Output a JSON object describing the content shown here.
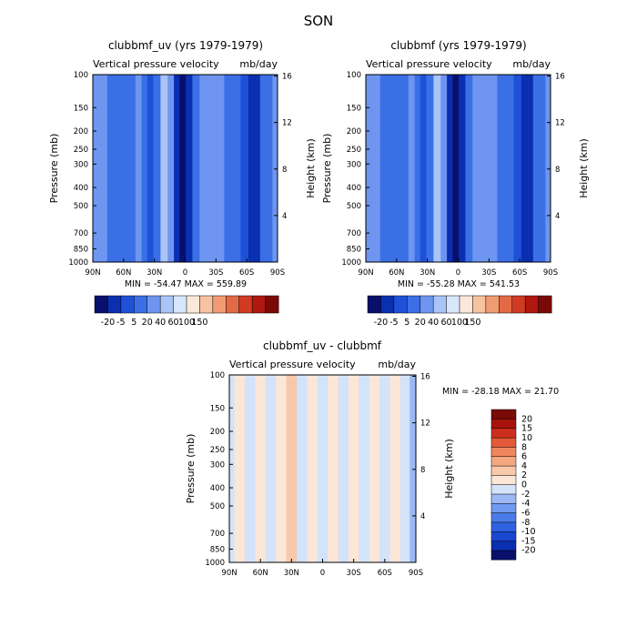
{
  "figure_title": "SON",
  "chart_data": [
    {
      "type": "heatmap",
      "title": "clubbmf_uv (yrs 1979-1979)",
      "subtitle": "Vertical pressure velocity",
      "units": "mb/day",
      "xlabel": "",
      "ylabel": "Pressure (mb)",
      "y2label": "Height (km)",
      "x_ticks": [
        "90N",
        "60N",
        "30N",
        "0",
        "30S",
        "60S",
        "90S"
      ],
      "y_ticks": [
        100,
        150,
        200,
        250,
        300,
        400,
        500,
        700,
        850,
        1000
      ],
      "y_tick_labels": [
        "100",
        "150",
        "200",
        "250",
        "300",
        "400",
        "500",
        "700",
        "850",
        "1000"
      ],
      "y2_ticks": [
        4,
        8,
        12,
        16
      ],
      "y_scale": "log",
      "ylim": [
        1000,
        100
      ],
      "min": -54.47,
      "max": 559.89,
      "stats_text": "MIN = -54.47   MAX = 559.89",
      "colorbar_levels": [
        -20,
        -5,
        5,
        20,
        40,
        60,
        100,
        150
      ],
      "colorbar_labels": [
        "-20",
        "-5",
        "5",
        "20",
        "40",
        "60",
        "100",
        "150"
      ],
      "colorbar_colors": [
        "#08106b",
        "#0a2fb0",
        "#1f51d8",
        "#3b6fe6",
        "#6e95f0",
        "#a9c4f7",
        "#d7e6fb",
        "#fce8d8",
        "#f7c2a0",
        "#f19b72",
        "#e46a45",
        "#d03b22",
        "#b0180f",
        "#7a0a06"
      ],
      "columns": [
        {
          "lat": 90,
          "value": 25
        },
        {
          "lat": 80,
          "value": 22
        },
        {
          "lat": 72,
          "value": 12
        },
        {
          "lat": 62,
          "value": 6
        },
        {
          "lat": 52,
          "value": 14
        },
        {
          "lat": 45,
          "value": 26
        },
        {
          "lat": 40,
          "value": 8
        },
        {
          "lat": 34,
          "value": 3
        },
        {
          "lat": 28,
          "value": 8
        },
        {
          "lat": 20,
          "value": 45
        },
        {
          "lat": 14,
          "value": 38
        },
        {
          "lat": 8,
          "value": -18
        },
        {
          "lat": 3,
          "value": -30
        },
        {
          "lat": -4,
          "value": -6
        },
        {
          "lat": -10,
          "value": 14
        },
        {
          "lat": -18,
          "value": 30
        },
        {
          "lat": -26,
          "value": 32
        },
        {
          "lat": -34,
          "value": 30
        },
        {
          "lat": -42,
          "value": 18
        },
        {
          "lat": -50,
          "value": 6
        },
        {
          "lat": -58,
          "value": -2
        },
        {
          "lat": -65,
          "value": -18
        },
        {
          "lat": -70,
          "value": -12
        },
        {
          "lat": -76,
          "value": 10
        },
        {
          "lat": -82,
          "value": 5
        },
        {
          "lat": -88,
          "value": 30
        }
      ]
    },
    {
      "type": "heatmap",
      "title": "clubbmf (yrs 1979-1979)",
      "subtitle": "Vertical pressure velocity",
      "units": "mb/day",
      "xlabel": "",
      "ylabel": "Pressure (mb)",
      "y2label": "Height (km)",
      "x_ticks": [
        "90N",
        "60N",
        "30N",
        "0",
        "30S",
        "60S",
        "90S"
      ],
      "y_ticks": [
        100,
        150,
        200,
        250,
        300,
        400,
        500,
        700,
        850,
        1000
      ],
      "y_tick_labels": [
        "100",
        "150",
        "200",
        "250",
        "300",
        "400",
        "500",
        "700",
        "850",
        "1000"
      ],
      "y2_ticks": [
        4,
        8,
        12,
        16
      ],
      "y_scale": "log",
      "ylim": [
        1000,
        100
      ],
      "min": -55.28,
      "max": 541.53,
      "stats_text": "MIN = -55.28   MAX = 541.53",
      "colorbar_levels": [
        -20,
        -5,
        5,
        20,
        40,
        60,
        100,
        150
      ],
      "colorbar_labels": [
        "-20",
        "-5",
        "5",
        "20",
        "40",
        "60",
        "100",
        "150"
      ],
      "colorbar_colors": [
        "#08106b",
        "#0a2fb0",
        "#1f51d8",
        "#3b6fe6",
        "#6e95f0",
        "#a9c4f7",
        "#d7e6fb",
        "#fce8d8",
        "#f7c2a0",
        "#f19b72",
        "#e46a45",
        "#d03b22",
        "#b0180f",
        "#7a0a06"
      ],
      "columns": [
        {
          "lat": 90,
          "value": 25
        },
        {
          "lat": 80,
          "value": 22
        },
        {
          "lat": 72,
          "value": 12
        },
        {
          "lat": 62,
          "value": 6
        },
        {
          "lat": 52,
          "value": 14
        },
        {
          "lat": 45,
          "value": 26
        },
        {
          "lat": 40,
          "value": 8
        },
        {
          "lat": 34,
          "value": 3
        },
        {
          "lat": 28,
          "value": 8
        },
        {
          "lat": 20,
          "value": 42
        },
        {
          "lat": 14,
          "value": 36
        },
        {
          "lat": 8,
          "value": -18
        },
        {
          "lat": 3,
          "value": -30
        },
        {
          "lat": -4,
          "value": -6
        },
        {
          "lat": -10,
          "value": 14
        },
        {
          "lat": -18,
          "value": 30
        },
        {
          "lat": -26,
          "value": 32
        },
        {
          "lat": -34,
          "value": 30
        },
        {
          "lat": -42,
          "value": 18
        },
        {
          "lat": -50,
          "value": 6
        },
        {
          "lat": -58,
          "value": -2
        },
        {
          "lat": -65,
          "value": -18
        },
        {
          "lat": -70,
          "value": -12
        },
        {
          "lat": -76,
          "value": 10
        },
        {
          "lat": -82,
          "value": 5
        },
        {
          "lat": -88,
          "value": 30
        }
      ]
    },
    {
      "type": "heatmap",
      "title": "clubbmf_uv - clubbmf",
      "subtitle": "Vertical pressure velocity",
      "units": "mb/day",
      "xlabel": "",
      "ylabel": "Pressure (mb)",
      "y2label": "Height (km)",
      "x_ticks": [
        "90N",
        "60N",
        "30N",
        "0",
        "30S",
        "60S",
        "90S"
      ],
      "y_ticks": [
        100,
        150,
        200,
        250,
        300,
        400,
        500,
        700,
        850,
        1000
      ],
      "y_tick_labels": [
        "100",
        "150",
        "200",
        "250",
        "300",
        "400",
        "500",
        "700",
        "850",
        "1000"
      ],
      "y2_ticks": [
        4,
        8,
        12,
        16
      ],
      "y_scale": "log",
      "ylim": [
        1000,
        100
      ],
      "min": -28.18,
      "max": 21.7,
      "stats_text": "MIN = -28.18   MAX =  21.70",
      "colorbar_levels": [
        -20,
        -15,
        -10,
        -8,
        -6,
        -4,
        -2,
        0,
        2,
        4,
        6,
        8,
        10,
        15,
        20
      ],
      "colorbar_labels": [
        "-20",
        "-15",
        "-10",
        "-8",
        "-6",
        "-4",
        "-2",
        "0",
        "2",
        "4",
        "6",
        "8",
        "10",
        "15",
        "20"
      ],
      "colorbar_colors": [
        "#08106b",
        "#0a2fb0",
        "#1a47d0",
        "#2f62e0",
        "#4a7be8",
        "#7099ef",
        "#9cb9f4",
        "#d2e3fa",
        "#fce6d6",
        "#f8c8aa",
        "#f4a880",
        "#ef875e",
        "#e45a38",
        "#cd2f1c",
        "#a8120c",
        "#7a0a06"
      ],
      "columns": [
        {
          "lat": 90,
          "value": -1
        },
        {
          "lat": 80,
          "value": 1
        },
        {
          "lat": 70,
          "value": -1
        },
        {
          "lat": 60,
          "value": 1
        },
        {
          "lat": 50,
          "value": -1
        },
        {
          "lat": 40,
          "value": 1
        },
        {
          "lat": 30,
          "value": 2
        },
        {
          "lat": 20,
          "value": -1
        },
        {
          "lat": 10,
          "value": 1
        },
        {
          "lat": 0,
          "value": -1
        },
        {
          "lat": -10,
          "value": 1
        },
        {
          "lat": -20,
          "value": -1
        },
        {
          "lat": -30,
          "value": 1
        },
        {
          "lat": -40,
          "value": -1
        },
        {
          "lat": -50,
          "value": 1
        },
        {
          "lat": -60,
          "value": -1
        },
        {
          "lat": -70,
          "value": 1
        },
        {
          "lat": -80,
          "value": -1
        },
        {
          "lat": -88,
          "value": -3
        }
      ]
    }
  ]
}
